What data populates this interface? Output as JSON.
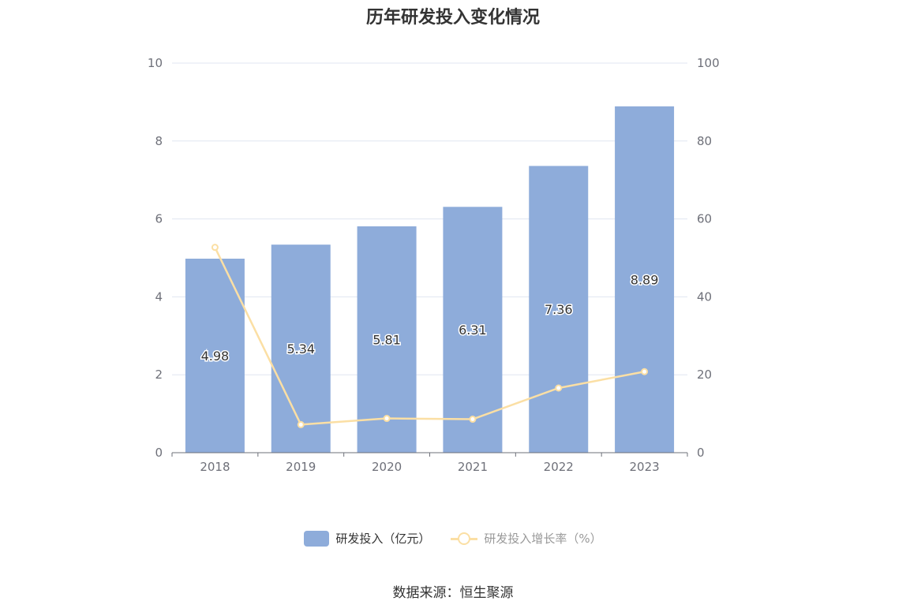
{
  "chart_data": {
    "type": "bar",
    "title": "历年研发投入变化情况",
    "categories": [
      "2018",
      "2019",
      "2020",
      "2021",
      "2022",
      "2023"
    ],
    "series": [
      {
        "name": "研发投入（亿元）",
        "type": "bar",
        "axis": "left",
        "values": [
          4.98,
          5.34,
          5.81,
          6.31,
          7.36,
          8.89
        ],
        "color": "#8eacda"
      },
      {
        "name": "研发投入增长率（%）",
        "type": "line",
        "axis": "right",
        "values": [
          52.7,
          7.2,
          8.8,
          8.6,
          16.6,
          20.8
        ],
        "color": "#fbdfa4"
      }
    ],
    "y_left": {
      "min": 0,
      "max": 10,
      "ticks": [
        "0",
        "2",
        "4",
        "6",
        "8",
        "10"
      ]
    },
    "y_right": {
      "min": 0,
      "max": 100,
      "ticks": [
        "0",
        "20",
        "40",
        "60",
        "80",
        "100"
      ]
    },
    "grid": true,
    "legend_position": "bottom"
  },
  "source_text": "数据来源：恒生聚源"
}
